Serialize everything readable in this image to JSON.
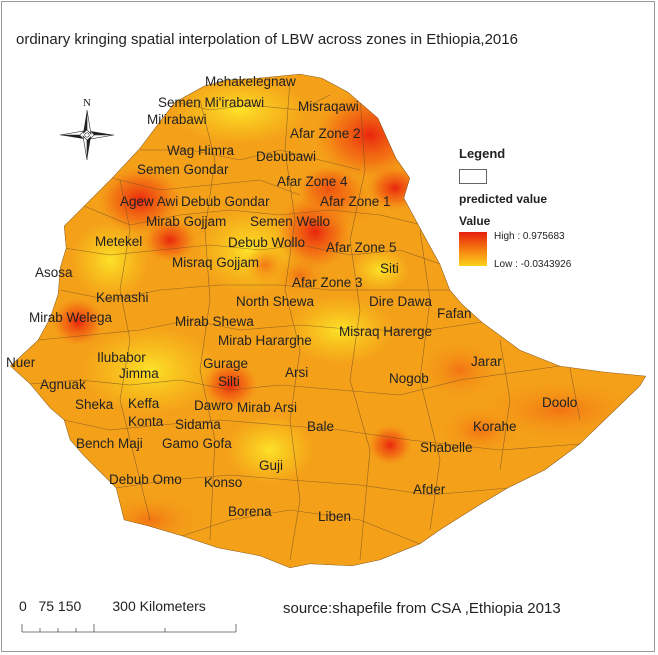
{
  "title": "ordinary kringing spatial interpolation  of LBW across zones in Ethiopia,2016",
  "north_arrow": {
    "letter": "N",
    "icon": "north-arrow-icon"
  },
  "legend": {
    "heading": "Legend",
    "layer": "predicted value",
    "field": "Value",
    "high": "High : 0.975683",
    "low": "Low : -0.0343926",
    "colors": {
      "high": "#e61e0e",
      "mid": "#f57a10",
      "low": "#fbd21a"
    }
  },
  "scale_bar": {
    "label": "0   75 150        300 Kilometers"
  },
  "source": "source:shapefile from CSA ,Ethiopia 2013",
  "zones": [
    "Mehakelegnaw",
    "Semen Mi'irabawi",
    "Misraqawi",
    "Mi'irabawi",
    "Afar Zone 2",
    "Wag Himra",
    "Debubawi",
    "Semen Gondar",
    "Afar Zone 4",
    "Agew Awi",
    "Debub Gondar",
    "Afar Zone 1",
    "Mirab Gojjam",
    "Semen Wello",
    "Metekel",
    "Debub Wollo",
    "Afar Zone 5",
    "Misraq Gojjam",
    "Siti",
    "Asosa",
    "Afar Zone 3",
    "Kemashi",
    "North Shewa",
    "Dire Dawa",
    "Fafan",
    "Mirab Welega",
    "Mirab Shewa",
    "Misraq Harerge",
    "Mirab Hararghe",
    "Nuer",
    "Ilubabor",
    "Jarar",
    "Gurage",
    "Agnuak",
    "Jimma",
    "Silti",
    "Arsi",
    "Nogob",
    "Sheka",
    "Keffa",
    "Dawro",
    "Doolo",
    "Mirab Arsi",
    "Konta",
    "Korahe",
    "Sidama",
    "Bench Maji",
    "Gamo Gofa",
    "Bale",
    "Shabelle",
    "Guji",
    "Debub Omo",
    "Konso",
    "Afder",
    "Borena",
    "Liben"
  ]
}
